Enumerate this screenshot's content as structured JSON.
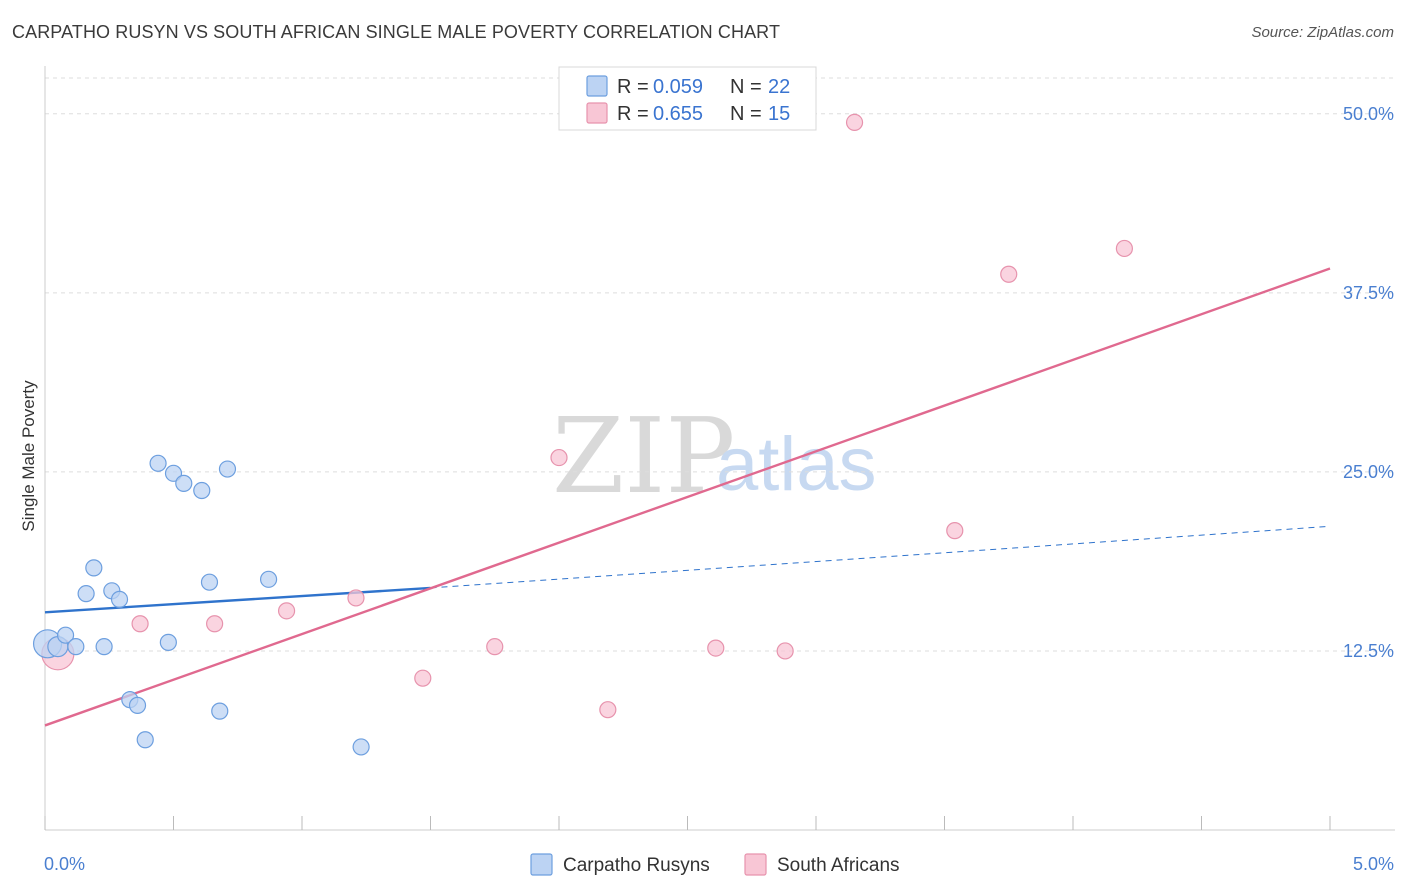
{
  "header": {
    "title": "CARPATHO RUSYN VS SOUTH AFRICAN SINGLE MALE POVERTY CORRELATION CHART",
    "source": "Source: ZipAtlas.com"
  },
  "watermark": {
    "zip": "ZIP",
    "atlas": "atlas"
  },
  "legend": {
    "r_label": "R =",
    "n_label": "N =",
    "series": [
      {
        "r": "0.059",
        "n": "22"
      },
      {
        "r": "0.655",
        "n": "15"
      }
    ]
  },
  "colors": {
    "blue_fill": "#bcd3f3",
    "blue_stroke": "#6d9fdf",
    "blue_line": "#2f73cc",
    "pink_fill": "#f8c6d5",
    "pink_stroke": "#e793ad",
    "pink_line": "#e0698f",
    "axis_label": "#4a7fd0",
    "grid": "#dddddd"
  },
  "chart_data": {
    "type": "scatter",
    "title": "CARPATHO RUSYN VS SOUTH AFRICAN SINGLE MALE POVERTY CORRELATION CHART",
    "xlabel": "",
    "ylabel": "Single Male Poverty",
    "xlim": [
      0,
      5
    ],
    "ylim": [
      0,
      52.5
    ],
    "x_tick_labels": [
      "0.0%",
      "5.0%"
    ],
    "y_ticks": [
      12.5,
      25.0,
      37.5,
      50.0
    ],
    "y_tick_labels": [
      "12.5%",
      "25.0%",
      "37.5%",
      "50.0%"
    ],
    "grid": true,
    "legend_position": "top-center",
    "series": [
      {
        "name": "Carpatho Rusyns",
        "color": "#6d9fdf",
        "points": [
          [
            0.01,
            13.0,
            14
          ],
          [
            0.05,
            12.8,
            10
          ],
          [
            0.08,
            13.6,
            8
          ],
          [
            0.12,
            12.8,
            8
          ],
          [
            0.16,
            16.5,
            8
          ],
          [
            0.19,
            18.3,
            8
          ],
          [
            0.23,
            12.8,
            8
          ],
          [
            0.26,
            16.7,
            8
          ],
          [
            0.29,
            16.1,
            8
          ],
          [
            0.33,
            9.1,
            8
          ],
          [
            0.36,
            8.7,
            8
          ],
          [
            0.39,
            6.3,
            8
          ],
          [
            0.44,
            25.6,
            8
          ],
          [
            0.48,
            13.1,
            8
          ],
          [
            0.5,
            24.9,
            8
          ],
          [
            0.54,
            24.2,
            8
          ],
          [
            0.61,
            23.7,
            8
          ],
          [
            0.64,
            17.3,
            8
          ],
          [
            0.68,
            8.3,
            8
          ],
          [
            0.71,
            25.2,
            8
          ],
          [
            0.87,
            17.5,
            8
          ],
          [
            1.23,
            5.8,
            8
          ]
        ],
        "trend": {
          "x1": 0.0,
          "y1": 15.2,
          "x2": 1.5,
          "y2": 16.9,
          "dashed_to_x": 5.0,
          "dashed_to_y": 21.2
        }
      },
      {
        "name": "South Africans",
        "color": "#e793ad",
        "points": [
          [
            0.05,
            12.3,
            16
          ],
          [
            0.37,
            14.4,
            8
          ],
          [
            0.66,
            14.4,
            8
          ],
          [
            0.94,
            15.3,
            8
          ],
          [
            1.21,
            16.2,
            8
          ],
          [
            1.47,
            10.6,
            8
          ],
          [
            1.75,
            12.8,
            8
          ],
          [
            2.0,
            26.0,
            8
          ],
          [
            2.19,
            8.4,
            8
          ],
          [
            2.61,
            12.7,
            8
          ],
          [
            2.88,
            12.5,
            8
          ],
          [
            3.15,
            49.4,
            8
          ],
          [
            3.54,
            20.9,
            8
          ],
          [
            3.75,
            38.8,
            8
          ],
          [
            4.2,
            40.6,
            8
          ]
        ],
        "trend": {
          "x1": 0.0,
          "y1": 7.3,
          "x2": 5.0,
          "y2": 39.2
        }
      }
    ]
  }
}
